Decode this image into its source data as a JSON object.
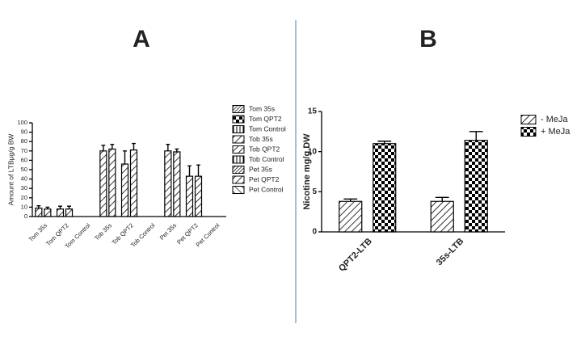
{
  "chart_data": [
    {
      "type": "bar",
      "title": "A",
      "ylabel": "Amount of LTBμg/g BW",
      "categories": [
        "Tom 35s",
        "Tom QPT2",
        "Tom Control",
        "Tob 35s",
        "Tob QPT2",
        "Tob Control",
        "Pet 35s",
        "Pet QPT2",
        "Pet Control"
      ],
      "series": [
        {
          "color": "#000000",
          "pattern": "hatch",
          "values": [
            9,
            8,
            null,
            70,
            56,
            null,
            70,
            43,
            null
          ],
          "errors": [
            2.5,
            3,
            null,
            6,
            14,
            null,
            7,
            11,
            null
          ]
        },
        {
          "color": "#000000",
          "pattern": "hatch",
          "values": [
            8,
            8,
            null,
            72,
            71,
            null,
            69,
            43,
            null
          ],
          "errors": [
            2,
            3,
            null,
            5,
            7,
            null,
            3,
            12,
            null
          ]
        }
      ],
      "legend": [
        "Tom 35s",
        "Tom QPT2",
        "Tom Control",
        "Tob 35s",
        "Tob QPT2",
        "Tob Control",
        "Pet 35s",
        "Pet QPT2",
        "Pet Control"
      ],
      "legend_patterns": [
        "dense",
        "check",
        "vert",
        "hatch",
        "hatch",
        "vert",
        "dense",
        "hatch",
        "back"
      ],
      "ylim": [
        0,
        100
      ],
      "yticks": [
        0,
        10,
        20,
        30,
        40,
        50,
        60,
        70,
        80,
        90,
        100
      ]
    },
    {
      "type": "bar",
      "title": "B",
      "ylabel": "Nicotine mg/g DW",
      "categories": [
        "QPT2-LTB",
        "35s-LTB"
      ],
      "series": [
        {
          "name": "- MeJa",
          "color": "#000000",
          "pattern": "hatch",
          "values": [
            3.8,
            3.8
          ],
          "errors": [
            0.3,
            0.5
          ]
        },
        {
          "name": "+ MeJa",
          "color": "#000000",
          "pattern": "check",
          "values": [
            11,
            11.4
          ],
          "errors": [
            0.3,
            1.1
          ]
        }
      ],
      "ylim": [
        0,
        15
      ],
      "yticks": [
        0,
        5,
        10,
        15
      ]
    }
  ]
}
